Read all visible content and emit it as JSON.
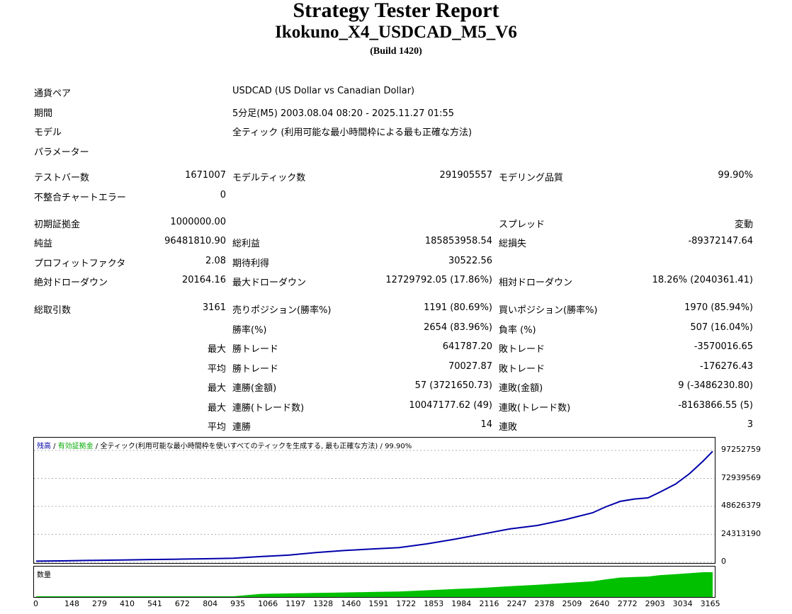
{
  "header": {
    "title": "Strategy Tester Report",
    "ea_name": "Ikokuno_X4_USDCAD_M5_V6",
    "build": "(Build 1420)"
  },
  "info": [
    {
      "label": "通貨ペア",
      "value": "USDCAD (US Dollar vs Canadian Dollar)"
    },
    {
      "label": "期間",
      "value": "5分足(M5) 2003.08.04 08:20 - 2025.11.27 01:55"
    },
    {
      "label": "モデル",
      "value": "全ティック (利用可能な最小時間枠による最も正確な方法)"
    },
    {
      "label": "パラメーター",
      "value": ""
    }
  ],
  "stats": {
    "bars_label": "テストバー数",
    "bars": "1671007",
    "ticks_label": "モデルティック数",
    "ticks": "291905557",
    "quality_label": "モデリング品質",
    "quality": "99.90%",
    "mismatch_label": "不整合チャートエラー",
    "mismatch": "0",
    "deposit_label": "初期証拠金",
    "deposit": "1000000.00",
    "spread_label": "スプレッド",
    "spread": "変動",
    "net_label": "純益",
    "net": "96481810.90",
    "gross_profit_label": "総利益",
    "gross_profit": "185853958.54",
    "gross_loss_label": "総損失",
    "gross_loss": "-89372147.64",
    "pf_label": "プロフィットファクタ",
    "pf": "2.08",
    "payoff_label": "期待利得",
    "payoff": "30522.56",
    "abs_dd_label": "絶対ドローダウン",
    "abs_dd": "20164.16",
    "max_dd_label": "最大ドローダウン",
    "max_dd": "12729792.05 (17.86%)",
    "rel_dd_label": "相対ドローダウン",
    "rel_dd": "18.26% (2040361.41)",
    "trades_label": "総取引数",
    "trades": "3161",
    "short_label": "売りポジション(勝率%)",
    "short": "1191 (80.69%)",
    "long_label": "買いポジション(勝率%)",
    "long": "1970 (85.94%)",
    "win_label": "勝率(%)",
    "win": "2654 (83.96%)",
    "loss_label": "負率 (%)",
    "loss": "507 (16.04%)",
    "max_prefix": "最大",
    "avg_prefix": "平均",
    "largest_win_label": "勝トレード",
    "largest_win": "641787.20",
    "largest_loss_label": "敗トレード",
    "largest_loss": "-3570016.65",
    "avg_win_label": "勝トレード",
    "avg_win": "70027.87",
    "avg_loss_label": "敗トレード",
    "avg_loss": "-176276.43",
    "max_cons_win_label": "連勝(金額)",
    "max_cons_win": "57 (3721650.73)",
    "max_cons_loss_label": "連敗(金額)",
    "max_cons_loss": "9 (-3486230.80)",
    "max_cons_profit_label": "連勝(トレード数)",
    "max_cons_profit": "10047177.62 (49)",
    "max_cons_lossamt_label": "連敗(トレード数)",
    "max_cons_lossamt": "-8163866.55 (5)",
    "avg_cons_win_label": "連勝",
    "avg_cons_win": "14",
    "avg_cons_loss_label": "連敗",
    "avg_cons_loss": "3"
  },
  "chart": {
    "legend_balance": "残高",
    "legend_sep1": " / ",
    "legend_equity": "有効証拠金",
    "legend_sep2": " / ",
    "legend_model": "全ティック(利用可能な最小時間枠を使いすべてのティックを生成する, 最も正確な方法)",
    "legend_quality": " / 99.90%",
    "volume_label": "数量",
    "balance_color": "#0000aa",
    "equity_color": "#00aa00",
    "volume_color": "#00c000",
    "y_ticks": [
      "97252759",
      "72939569",
      "48626379",
      "24313190",
      "0"
    ],
    "x_ticks": [
      "0",
      "148",
      "279",
      "410",
      "541",
      "672",
      "804",
      "935",
      "1066",
      "1197",
      "1328",
      "1460",
      "1591",
      "1722",
      "1853",
      "1984",
      "2116",
      "2247",
      "2378",
      "2509",
      "2640",
      "2772",
      "2903",
      "3034",
      "3165"
    ]
  },
  "chart_data": {
    "type": "line",
    "xlabel": "",
    "ylabel": "",
    "ylim": [
      0,
      97252759
    ],
    "x": [
      0,
      148,
      279,
      410,
      541,
      672,
      804,
      935,
      1066,
      1197,
      1328,
      1460,
      1591,
      1722,
      1853,
      1984,
      2116,
      2247,
      2378,
      2509,
      2640,
      2700,
      2772,
      2840,
      2903,
      2960,
      3034,
      3100,
      3165,
      3210
    ],
    "series": [
      {
        "name": "残高",
        "values": [
          1000000,
          1300000,
          1700000,
          2000000,
          2400000,
          2700000,
          3100000,
          3600000,
          5000000,
          6200000,
          8500000,
          10200000,
          11500000,
          12800000,
          16000000,
          20000000,
          24500000,
          29000000,
          32000000,
          37000000,
          43000000,
          48000000,
          53000000,
          55000000,
          56000000,
          61000000,
          68000000,
          77000000,
          88000000,
          96481810
        ]
      }
    ],
    "volume": [
      0,
      0,
      0,
      0,
      0,
      0,
      0,
      0,
      10,
      12,
      14,
      16,
      18,
      20,
      25,
      30,
      35,
      42,
      48,
      55,
      62,
      70,
      78,
      80,
      82,
      88,
      92,
      96,
      100,
      100
    ]
  }
}
